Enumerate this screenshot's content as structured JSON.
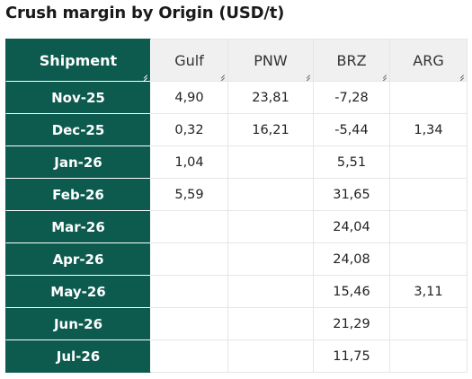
{
  "title": "Crush margin by Origin (USD/t)",
  "header": {
    "row_label": "Shipment",
    "columns": [
      "Gulf",
      "PNW",
      "BRZ",
      "ARG"
    ]
  },
  "rows": [
    {
      "label": "Nov-25",
      "cells": [
        "4,90",
        "23,81",
        "-7,28",
        ""
      ]
    },
    {
      "label": "Dec-25",
      "cells": [
        "0,32",
        "16,21",
        "-5,44",
        "1,34"
      ]
    },
    {
      "label": "Jan-26",
      "cells": [
        "1,04",
        "",
        "5,51",
        ""
      ]
    },
    {
      "label": "Feb-26",
      "cells": [
        "5,59",
        "",
        "31,65",
        ""
      ]
    },
    {
      "label": "Mar-26",
      "cells": [
        "",
        "",
        "24,04",
        ""
      ]
    },
    {
      "label": "Apr-26",
      "cells": [
        "",
        "",
        "24,08",
        ""
      ]
    },
    {
      "label": "May-26",
      "cells": [
        "",
        "",
        "15,46",
        "3,11"
      ]
    },
    {
      "label": "Jun-26",
      "cells": [
        "",
        "",
        "21,29",
        ""
      ]
    },
    {
      "label": "Jul-26",
      "cells": [
        "",
        "",
        "11,75",
        ""
      ]
    }
  ],
  "colors": {
    "header_accent": "#0d5a4f",
    "header_bg": "#f0f0f0",
    "border": "#e6e6e6"
  },
  "chart_data": {
    "type": "table",
    "title": "Crush margin by Origin (USD/t)",
    "row_header": "Shipment",
    "columns": [
      "Gulf",
      "PNW",
      "BRZ",
      "ARG"
    ],
    "rows": [
      "Nov-25",
      "Dec-25",
      "Jan-26",
      "Feb-26",
      "Mar-26",
      "Apr-26",
      "May-26",
      "Jun-26",
      "Jul-26"
    ],
    "values": [
      [
        4.9,
        23.81,
        -7.28,
        null
      ],
      [
        0.32,
        16.21,
        -5.44,
        1.34
      ],
      [
        1.04,
        null,
        5.51,
        null
      ],
      [
        5.59,
        null,
        31.65,
        null
      ],
      [
        null,
        null,
        24.04,
        null
      ],
      [
        null,
        null,
        24.08,
        null
      ],
      [
        null,
        null,
        15.46,
        3.11
      ],
      [
        null,
        null,
        21.29,
        null
      ],
      [
        null,
        null,
        11.75,
        null
      ]
    ]
  }
}
